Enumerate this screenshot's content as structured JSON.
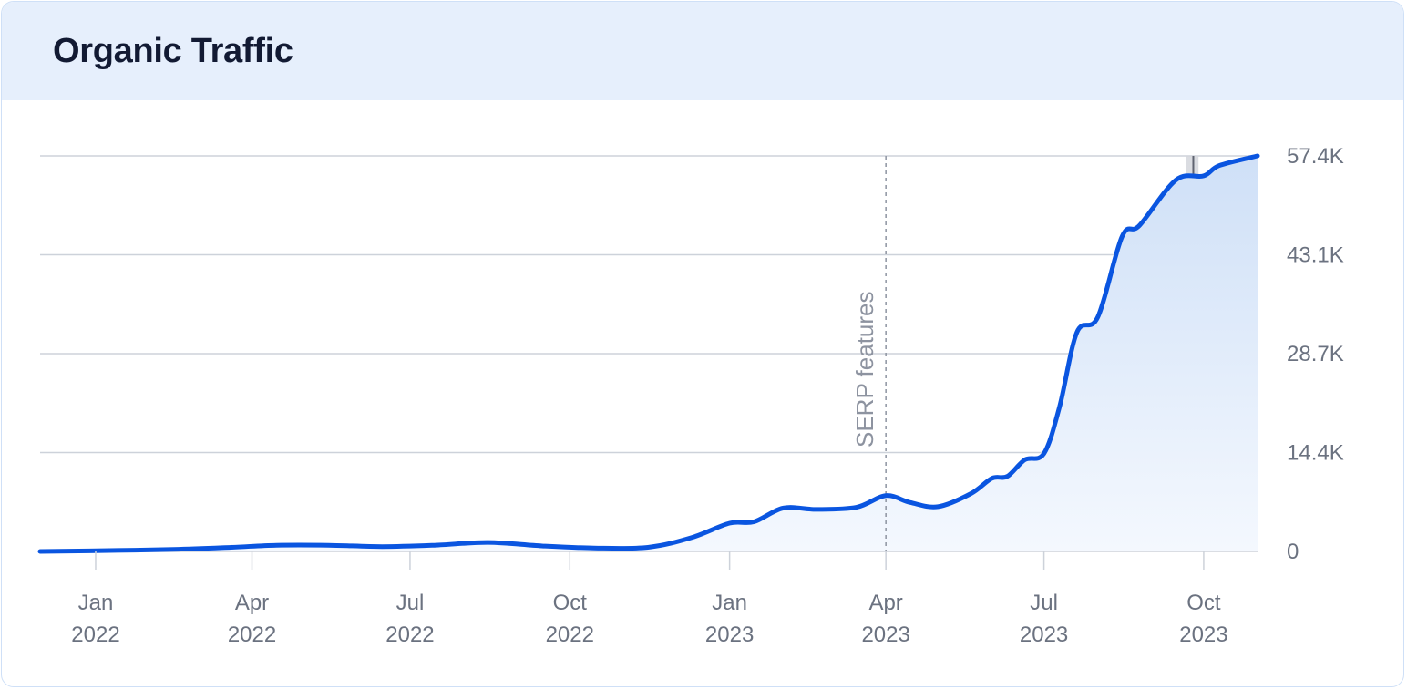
{
  "card": {
    "title": "Organic Traffic"
  },
  "chart_data": {
    "type": "area",
    "title": "Organic Traffic",
    "xlabel": "",
    "ylabel": "",
    "ylim": [
      0,
      57400
    ],
    "y_ticks": [
      {
        "value": 0,
        "label": "0"
      },
      {
        "value": 14350,
        "label": "14.4K"
      },
      {
        "value": 28700,
        "label": "28.7K"
      },
      {
        "value": 43050,
        "label": "43.1K"
      },
      {
        "value": 57400,
        "label": "57.4K"
      }
    ],
    "x_ticks": [
      {
        "date": "2022-01-01",
        "month": "Jan",
        "year": "2022"
      },
      {
        "date": "2022-04-01",
        "month": "Apr",
        "year": "2022"
      },
      {
        "date": "2022-07-01",
        "month": "Jul",
        "year": "2022"
      },
      {
        "date": "2022-10-01",
        "month": "Oct",
        "year": "2022"
      },
      {
        "date": "2023-01-01",
        "month": "Jan",
        "year": "2023"
      },
      {
        "date": "2023-04-01",
        "month": "Apr",
        "year": "2023"
      },
      {
        "date": "2023-07-01",
        "month": "Jul",
        "year": "2023"
      },
      {
        "date": "2023-10-01",
        "month": "Oct",
        "year": "2023"
      }
    ],
    "x_range": [
      "2021-11-30",
      "2023-11-01"
    ],
    "grid": true,
    "legend": "none",
    "series": [
      {
        "color": "#0a55e0",
        "points": [
          {
            "x": "2021-11-30",
            "y": 0
          },
          {
            "x": "2022-01-01",
            "y": 100
          },
          {
            "x": "2022-02-15",
            "y": 300
          },
          {
            "x": "2022-03-20",
            "y": 600
          },
          {
            "x": "2022-04-15",
            "y": 900
          },
          {
            "x": "2022-05-15",
            "y": 900
          },
          {
            "x": "2022-06-15",
            "y": 700
          },
          {
            "x": "2022-07-15",
            "y": 900
          },
          {
            "x": "2022-08-15",
            "y": 1300
          },
          {
            "x": "2022-09-15",
            "y": 800
          },
          {
            "x": "2022-10-15",
            "y": 500
          },
          {
            "x": "2022-11-15",
            "y": 600
          },
          {
            "x": "2022-12-10",
            "y": 2000
          },
          {
            "x": "2023-01-01",
            "y": 4100
          },
          {
            "x": "2023-01-15",
            "y": 4300
          },
          {
            "x": "2023-02-01",
            "y": 6300
          },
          {
            "x": "2023-02-20",
            "y": 6100
          },
          {
            "x": "2023-03-15",
            "y": 6400
          },
          {
            "x": "2023-04-01",
            "y": 8100
          },
          {
            "x": "2023-04-15",
            "y": 7100
          },
          {
            "x": "2023-05-01",
            "y": 6500
          },
          {
            "x": "2023-05-20",
            "y": 8400
          },
          {
            "x": "2023-06-01",
            "y": 10600
          },
          {
            "x": "2023-06-10",
            "y": 10900
          },
          {
            "x": "2023-06-20",
            "y": 13300
          },
          {
            "x": "2023-07-01",
            "y": 14200
          },
          {
            "x": "2023-07-10",
            "y": 21000
          },
          {
            "x": "2023-07-20",
            "y": 31800
          },
          {
            "x": "2023-08-01",
            "y": 34000
          },
          {
            "x": "2023-08-15",
            "y": 45700
          },
          {
            "x": "2023-08-25",
            "y": 47300
          },
          {
            "x": "2023-09-15",
            "y": 53900
          },
          {
            "x": "2023-10-01",
            "y": 54500
          },
          {
            "x": "2023-10-10",
            "y": 56000
          },
          {
            "x": "2023-11-01",
            "y": 57400
          }
        ]
      }
    ],
    "annotations": [
      {
        "type": "vline",
        "x": "2023-04-01",
        "label": "SERP features",
        "style": "dashed"
      },
      {
        "type": "band",
        "x_start": "2023-09-21",
        "x_end": "2023-09-28",
        "marker_x": "2023-09-25"
      }
    ],
    "colors": {
      "line": "#0a55e0",
      "area_top": "#cfe0f7",
      "area_bottom": "#f4f8fe",
      "grid": "#cdd2da",
      "band": "#d4d6dc",
      "band_line": "#5f6370"
    }
  }
}
